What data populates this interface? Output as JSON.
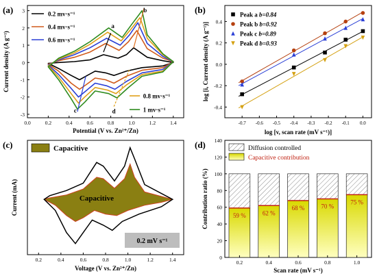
{
  "chart_data": [
    {
      "panel": "(a)",
      "type": "line",
      "xlabel": "Potential (V vs. Zn²⁺/Zn)",
      "ylabel": "Current density (A g⁻¹)",
      "xlim": [
        0.0,
        1.5
      ],
      "ylim": [
        -3.2,
        3.3
      ],
      "xticks": [
        "0.0",
        "0.2",
        "0.4",
        "0.6",
        "0.8",
        "1.0",
        "1.2",
        "1.4"
      ],
      "yticks": [
        "-3",
        "-2",
        "-1",
        "0",
        "1",
        "2",
        "3"
      ],
      "series": [
        {
          "name": "0.2 mv·s⁻¹",
          "color": "#000000",
          "points": [
            [
              0.2,
              -0.05
            ],
            [
              0.3,
              -0.35
            ],
            [
              0.42,
              -0.75
            ],
            [
              0.5,
              -1.0
            ],
            [
              0.56,
              -0.8
            ],
            [
              0.65,
              -0.5
            ],
            [
              0.75,
              -0.6
            ],
            [
              0.83,
              -0.75
            ],
            [
              0.95,
              -0.5
            ],
            [
              1.1,
              -0.3
            ],
            [
              1.3,
              -0.2
            ],
            [
              1.4,
              0.0
            ],
            [
              1.3,
              0.1
            ],
            [
              1.15,
              0.3
            ],
            [
              1.02,
              0.85
            ],
            [
              0.95,
              0.45
            ],
            [
              0.87,
              0.25
            ],
            [
              0.73,
              0.45
            ],
            [
              0.6,
              0.15
            ],
            [
              0.45,
              0.05
            ],
            [
              0.3,
              0.0
            ],
            [
              0.2,
              -0.05
            ]
          ]
        },
        {
          "name": "0.4 mv·s⁻¹",
          "color": "#d05a1a",
          "points": [
            [
              0.2,
              -0.1
            ],
            [
              0.3,
              -0.5
            ],
            [
              0.42,
              -1.2
            ],
            [
              0.5,
              -1.55
            ],
            [
              0.56,
              -1.3
            ],
            [
              0.65,
              -0.9
            ],
            [
              0.75,
              -1.0
            ],
            [
              0.83,
              -1.2
            ],
            [
              0.95,
              -0.8
            ],
            [
              1.1,
              -0.45
            ],
            [
              1.3,
              -0.3
            ],
            [
              1.4,
              0.05
            ],
            [
              1.3,
              0.25
            ],
            [
              1.15,
              0.8
            ],
            [
              1.05,
              1.85
            ],
            [
              0.97,
              1.2
            ],
            [
              0.88,
              0.7
            ],
            [
              0.75,
              1.1
            ],
            [
              0.6,
              0.6
            ],
            [
              0.45,
              0.3
            ],
            [
              0.3,
              0.1
            ],
            [
              0.2,
              -0.1
            ]
          ]
        },
        {
          "name": "0.6 mv·s⁻¹",
          "color": "#2a3fd6",
          "points": [
            [
              0.2,
              -0.15
            ],
            [
              0.3,
              -0.7
            ],
            [
              0.42,
              -1.5
            ],
            [
              0.49,
              -2.0
            ],
            [
              0.55,
              -1.7
            ],
            [
              0.65,
              -1.2
            ],
            [
              0.76,
              -1.35
            ],
            [
              0.84,
              -1.55
            ],
            [
              0.95,
              -1.1
            ],
            [
              1.1,
              -0.6
            ],
            [
              1.3,
              -0.4
            ],
            [
              1.4,
              0.05
            ],
            [
              1.3,
              0.35
            ],
            [
              1.15,
              1.1
            ],
            [
              1.06,
              2.3
            ],
            [
              0.98,
              1.6
            ],
            [
              0.89,
              1.0
            ],
            [
              0.76,
              1.4
            ],
            [
              0.6,
              0.85
            ],
            [
              0.45,
              0.45
            ],
            [
              0.3,
              0.15
            ],
            [
              0.2,
              -0.15
            ]
          ]
        },
        {
          "name": "0.8 mv·s⁻¹",
          "color": "#e0a018",
          "points": [
            [
              0.2,
              -0.2
            ],
            [
              0.3,
              -0.85
            ],
            [
              0.42,
              -1.8
            ],
            [
              0.49,
              -2.35
            ],
            [
              0.55,
              -2.0
            ],
            [
              0.65,
              -1.45
            ],
            [
              0.77,
              -1.6
            ],
            [
              0.85,
              -1.8
            ],
            [
              0.95,
              -1.3
            ],
            [
              1.1,
              -0.7
            ],
            [
              1.3,
              -0.5
            ],
            [
              1.4,
              0.05
            ],
            [
              1.3,
              0.45
            ],
            [
              1.15,
              1.4
            ],
            [
              1.08,
              2.6
            ],
            [
              0.99,
              1.9
            ],
            [
              0.9,
              1.25
            ],
            [
              0.77,
              1.75
            ],
            [
              0.6,
              1.05
            ],
            [
              0.45,
              0.55
            ],
            [
              0.3,
              0.2
            ],
            [
              0.2,
              -0.2
            ]
          ]
        },
        {
          "name": "1 mv·s⁻¹",
          "color": "#2e8b1e",
          "points": [
            [
              0.2,
              -0.25
            ],
            [
              0.3,
              -1.0
            ],
            [
              0.42,
              -2.1
            ],
            [
              0.48,
              -2.7
            ],
            [
              0.55,
              -2.3
            ],
            [
              0.65,
              -1.65
            ],
            [
              0.78,
              -1.8
            ],
            [
              0.86,
              -2.05
            ],
            [
              0.96,
              -1.5
            ],
            [
              1.1,
              -0.8
            ],
            [
              1.3,
              -0.55
            ],
            [
              1.4,
              0.05
            ],
            [
              1.3,
              0.5
            ],
            [
              1.15,
              1.6
            ],
            [
              1.1,
              3.0
            ],
            [
              1.0,
              2.2
            ],
            [
              0.91,
              1.45
            ],
            [
              0.78,
              2.0
            ],
            [
              0.6,
              1.2
            ],
            [
              0.45,
              0.65
            ],
            [
              0.3,
              0.25
            ],
            [
              0.2,
              -0.25
            ]
          ]
        }
      ],
      "annotations": [
        "a",
        "b",
        "c",
        "d"
      ]
    },
    {
      "panel": "(b)",
      "type": "scatter",
      "xlabel": "log [v, scan rate (mV s⁻¹)]",
      "ylabel": "log [i, Current density (A g⁻¹)]",
      "xlim": [
        -0.8,
        0.05
      ],
      "ylim": [
        -0.5,
        0.55
      ],
      "xticks": [
        "-0.7",
        "-0.6",
        "-0.5",
        "-0.4",
        "-0.3",
        "-0.2",
        "-0.1",
        "0.0"
      ],
      "yticks": [
        "-0.4",
        "-0.2",
        "0.0",
        "0.2",
        "0.4"
      ],
      "x": [
        -0.7,
        -0.4,
        -0.22,
        -0.1,
        0.0
      ],
      "series": [
        {
          "name": "Peak a b=0.84",
          "label": "Peak a ",
          "bval": "b=0.84",
          "color": "#000000",
          "marker": "square",
          "values": [
            -0.28,
            -0.03,
            0.11,
            0.23,
            0.31
          ]
        },
        {
          "name": "Peak b b=0.92",
          "label": "Peak b ",
          "bval": "b=0.92",
          "color": "#b5400f",
          "marker": "circle",
          "values": [
            -0.16,
            0.13,
            0.29,
            0.4,
            0.48
          ]
        },
        {
          "name": "Peak c b=0.89",
          "label": "Peak c ",
          "bval": "b=0.89",
          "color": "#2a3fd6",
          "marker": "triangle-up",
          "values": [
            -0.19,
            0.09,
            0.24,
            0.34,
            0.42
          ]
        },
        {
          "name": "Peak d b=0.93",
          "label": "Peak d ",
          "bval": "b=0.93",
          "color": "#d4a010",
          "marker": "triangle-down",
          "values": [
            -0.4,
            -0.09,
            0.04,
            0.17,
            0.25
          ]
        }
      ]
    },
    {
      "panel": "(c)",
      "type": "area",
      "xlabel": "Voltage (V vs. Zn²⁺/Zn)",
      "ylabel": "Current (mA)",
      "xlim": [
        0.1,
        1.5
      ],
      "ylim": [
        -0.75,
        0.8
      ],
      "xticks": [
        "0.2",
        "0.4",
        "0.6",
        "0.8",
        "1.0",
        "1.2",
        "1.4"
      ],
      "yticks": [],
      "legend": "Capacitive",
      "inner_label": "Capacitive",
      "rate_label": "0.2 mV s⁻¹",
      "total_cv": [
        [
          0.25,
          0.0
        ],
        [
          0.35,
          -0.15
        ],
        [
          0.45,
          -0.45
        ],
        [
          0.53,
          -0.6
        ],
        [
          0.6,
          -0.45
        ],
        [
          0.68,
          -0.28
        ],
        [
          0.78,
          -0.35
        ],
        [
          0.86,
          -0.42
        ],
        [
          0.95,
          -0.3
        ],
        [
          1.1,
          -0.2
        ],
        [
          1.3,
          -0.1
        ],
        [
          1.4,
          0.0
        ],
        [
          1.3,
          0.08
        ],
        [
          1.15,
          0.2
        ],
        [
          1.06,
          0.55
        ],
        [
          1.02,
          0.7
        ],
        [
          0.97,
          0.45
        ],
        [
          0.88,
          0.25
        ],
        [
          0.78,
          0.45
        ],
        [
          0.72,
          0.5
        ],
        [
          0.6,
          0.22
        ],
        [
          0.45,
          0.12
        ],
        [
          0.3,
          0.05
        ],
        [
          0.25,
          0.0
        ]
      ],
      "capacitive_cv": [
        [
          0.25,
          0.0
        ],
        [
          0.35,
          -0.08
        ],
        [
          0.45,
          -0.22
        ],
        [
          0.53,
          -0.3
        ],
        [
          0.6,
          -0.25
        ],
        [
          0.7,
          -0.15
        ],
        [
          0.8,
          -0.2
        ],
        [
          0.9,
          -0.22
        ],
        [
          1.0,
          -0.15
        ],
        [
          1.15,
          -0.08
        ],
        [
          1.3,
          -0.04
        ],
        [
          1.4,
          0.0
        ],
        [
          1.3,
          0.04
        ],
        [
          1.15,
          0.1
        ],
        [
          1.06,
          0.3
        ],
        [
          1.02,
          0.48
        ],
        [
          0.97,
          0.28
        ],
        [
          0.88,
          0.15
        ],
        [
          0.78,
          0.28
        ],
        [
          0.72,
          0.3
        ],
        [
          0.6,
          0.14
        ],
        [
          0.45,
          0.06
        ],
        [
          0.3,
          0.02
        ],
        [
          0.25,
          0.0
        ]
      ]
    },
    {
      "panel": "(d)",
      "type": "bar",
      "xlabel": "Scan rate (mV s⁻¹)",
      "ylabel": "Contribution ratio (%)",
      "ylim": [
        0,
        140
      ],
      "yticks": [
        "0",
        "20",
        "40",
        "60",
        "80",
        "100",
        "120",
        "140"
      ],
      "categories": [
        "0.2",
        "0.4",
        "0.6",
        "0.8",
        "1.0"
      ],
      "series": [
        {
          "name": "Capacitive contribution",
          "color": "#e6e600",
          "values": [
            59,
            62,
            68,
            70,
            75
          ],
          "labels": [
            "59 %",
            "62 %",
            "68 %",
            "70 %",
            "75 %"
          ]
        },
        {
          "name": "Diffusion controlled",
          "color": "#ffffff",
          "values": [
            41,
            38,
            32,
            30,
            25
          ]
        }
      ]
    }
  ],
  "panel_labels": {
    "a": "(a)",
    "b": "(b)",
    "c": "(c)",
    "d": "(d)"
  }
}
